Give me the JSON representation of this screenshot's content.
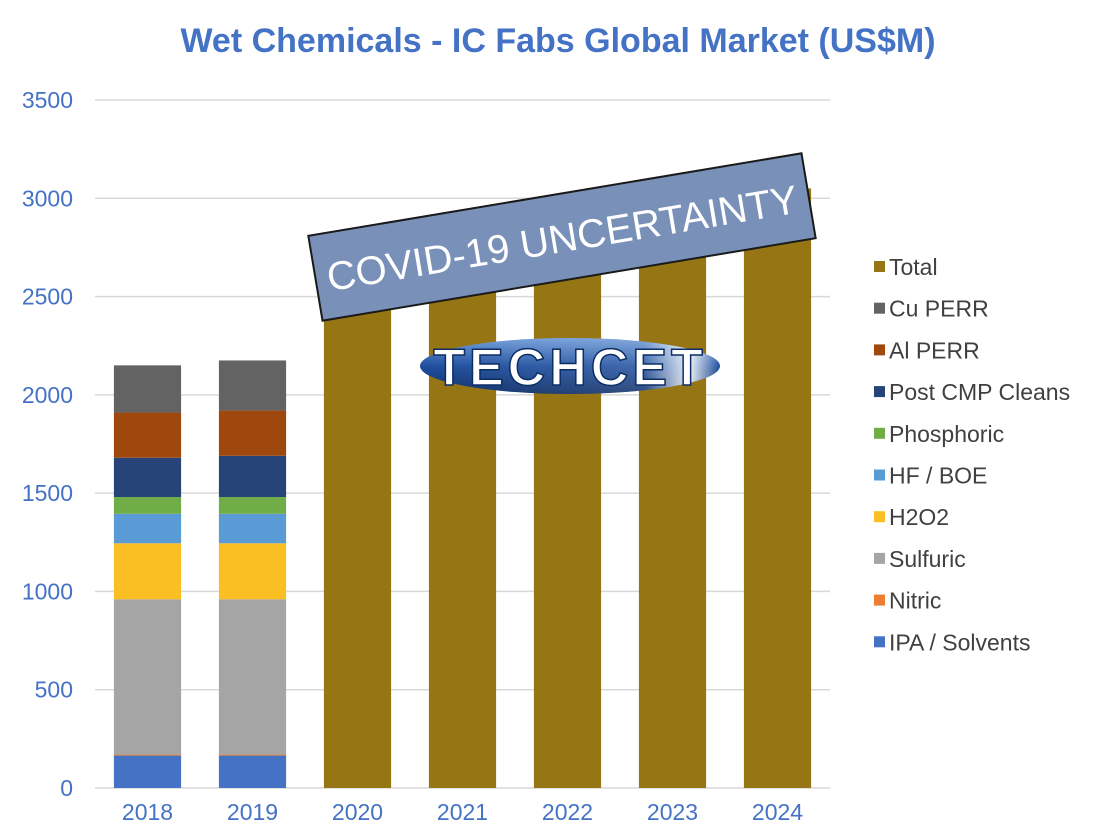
{
  "chart_data": {
    "type": "bar",
    "stacked": true,
    "title": "Wet Chemicals - IC Fabs Global Market (US$M)",
    "xlabel": "",
    "ylabel": "",
    "categories": [
      "2018",
      "2019",
      "2020",
      "2021",
      "2022",
      "2023",
      "2024"
    ],
    "ylim": [
      0,
      3500
    ],
    "yticks": [
      0,
      500,
      1000,
      1500,
      2000,
      2500,
      3000,
      3500
    ],
    "grid": true,
    "legend_position": "right",
    "series": [
      {
        "name": "IPA / Solvents",
        "color": "#4472C4",
        "values": [
          165,
          165,
          null,
          null,
          null,
          null,
          null
        ]
      },
      {
        "name": "Nitric",
        "color": "#ED7D31",
        "values": [
          5,
          5,
          null,
          null,
          null,
          null,
          null
        ]
      },
      {
        "name": "Sulfuric",
        "color": "#A5A5A5",
        "values": [
          790,
          790,
          null,
          null,
          null,
          null,
          null
        ]
      },
      {
        "name": "H2O2",
        "color": "#FBBF24",
        "values": [
          285,
          285,
          null,
          null,
          null,
          null,
          null
        ]
      },
      {
        "name": "HF / BOE",
        "color": "#5B9BD5",
        "values": [
          150,
          150,
          null,
          null,
          null,
          null,
          null
        ]
      },
      {
        "name": "Phosphoric",
        "color": "#70AD47",
        "values": [
          85,
          85,
          null,
          null,
          null,
          null,
          null
        ]
      },
      {
        "name": "Post CMP Cleans",
        "color": "#264478",
        "values": [
          200,
          210,
          null,
          null,
          null,
          null,
          null
        ]
      },
      {
        "name": "Al PERR",
        "color": "#9E480E",
        "values": [
          230,
          230,
          null,
          null,
          null,
          null,
          null
        ]
      },
      {
        "name": "Cu PERR",
        "color": "#636363",
        "values": [
          240,
          255,
          null,
          null,
          null,
          null,
          null
        ]
      },
      {
        "name": "Total",
        "color": "#967514",
        "values": [
          null,
          null,
          2600,
          2700,
          2800,
          2950,
          3050
        ]
      }
    ],
    "annotations": [
      {
        "text": "COVID-19 UNCERTAINTY"
      },
      {
        "text": "TECHCET"
      }
    ]
  },
  "colors": {
    "title": "#4472C4",
    "axis_text": "#4472C4",
    "grid": "#D9D9D9",
    "banner_fill": "#7990B9",
    "banner_stroke": "#1a1a1a",
    "legend_text": "#404040"
  }
}
